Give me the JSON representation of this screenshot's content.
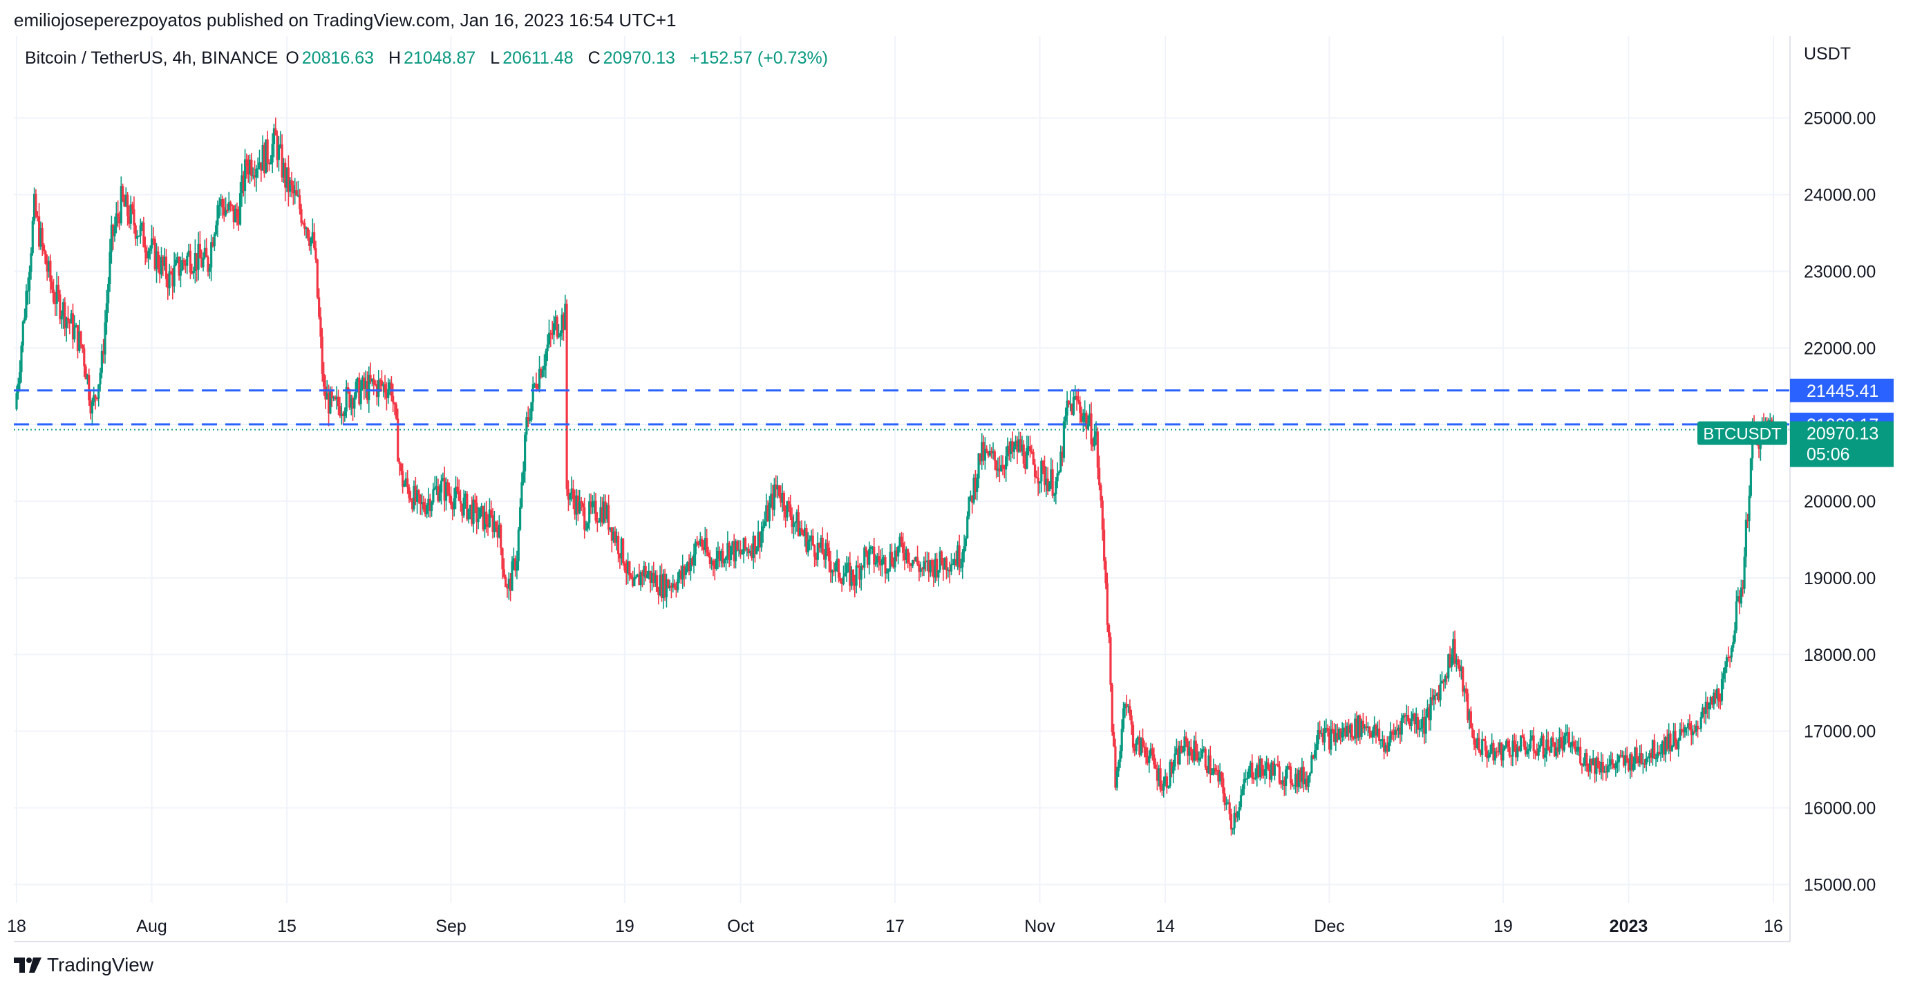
{
  "header": {
    "publisher_line": "emiliojoseperezpoyatos published on TradingView.com, Jan 16, 2023 16:54 UTC+1"
  },
  "legend": {
    "symbol": "Bitcoin / TetherUS, 4h, BINANCE",
    "open_label": "O",
    "open": "20816.63",
    "high_label": "H",
    "high": "21048.87",
    "low_label": "L",
    "low": "20611.48",
    "close_label": "C",
    "close": "20970.13",
    "change": "+152.57 (+0.73%)"
  },
  "footer": {
    "brand": "TradingView"
  },
  "colors": {
    "up": "#089981",
    "down": "#f23645",
    "level": "#2962ff",
    "grid": "#f0f3fa",
    "axis_text": "#131722"
  },
  "chart_data": {
    "type": "candlestick",
    "title": "",
    "xlabel": "",
    "ylabel": "",
    "y_unit": "USDT",
    "ylim": [
      14760,
      26070
    ],
    "grid": true,
    "y_ticks": [
      15000,
      16000,
      17000,
      18000,
      19000,
      20000,
      21000,
      22000,
      23000,
      24000,
      25000
    ],
    "y_tick_labels": [
      "15000.00",
      "16000.00",
      "17000.00",
      "18000.00",
      "19000.00",
      "20000.00",
      "21000.00",
      "22000.00",
      "23000.00",
      "24000.00",
      "25000.00"
    ],
    "x_range": [
      "2022-07-18",
      "2023-01-16"
    ],
    "x_ticks": [
      {
        "date": "2022-07-18",
        "label": "18",
        "bold": false
      },
      {
        "date": "2022-08-01",
        "label": "Aug",
        "bold": false
      },
      {
        "date": "2022-08-15",
        "label": "15",
        "bold": false
      },
      {
        "date": "2022-09-01",
        "label": "Sep",
        "bold": false
      },
      {
        "date": "2022-09-19",
        "label": "19",
        "bold": false
      },
      {
        "date": "2022-10-01",
        "label": "Oct",
        "bold": false
      },
      {
        "date": "2022-10-17",
        "label": "17",
        "bold": false
      },
      {
        "date": "2022-11-01",
        "label": "Nov",
        "bold": false
      },
      {
        "date": "2022-11-14",
        "label": "14",
        "bold": false
      },
      {
        "date": "2022-12-01",
        "label": "Dec",
        "bold": false
      },
      {
        "date": "2022-12-19",
        "label": "19",
        "bold": false
      },
      {
        "date": "2023-01-01",
        "label": "2023",
        "bold": true
      },
      {
        "date": "2023-01-16",
        "label": "16",
        "bold": false
      }
    ],
    "price_path": [
      {
        "date": "2022-07-18",
        "price": 21200
      },
      {
        "date": "2022-07-19",
        "price": 22500
      },
      {
        "date": "2022-07-20",
        "price": 23800
      },
      {
        "date": "2022-07-21",
        "price": 23200
      },
      {
        "date": "2022-07-22",
        "price": 22700
      },
      {
        "date": "2022-07-23",
        "price": 22500
      },
      {
        "date": "2022-07-25",
        "price": 22000
      },
      {
        "date": "2022-07-26",
        "price": 21200
      },
      {
        "date": "2022-07-27",
        "price": 21800
      },
      {
        "date": "2022-07-28",
        "price": 23400
      },
      {
        "date": "2022-07-29",
        "price": 23900
      },
      {
        "date": "2022-07-30",
        "price": 23700
      },
      {
        "date": "2022-08-01",
        "price": 23300
      },
      {
        "date": "2022-08-03",
        "price": 22900
      },
      {
        "date": "2022-08-05",
        "price": 23200
      },
      {
        "date": "2022-08-07",
        "price": 23100
      },
      {
        "date": "2022-08-08",
        "price": 23900
      },
      {
        "date": "2022-08-10",
        "price": 23700
      },
      {
        "date": "2022-08-11",
        "price": 24400
      },
      {
        "date": "2022-08-13",
        "price": 24500
      },
      {
        "date": "2022-08-14",
        "price": 24700
      },
      {
        "date": "2022-08-15",
        "price": 24200
      },
      {
        "date": "2022-08-17",
        "price": 23700
      },
      {
        "date": "2022-08-18",
        "price": 23300
      },
      {
        "date": "2022-08-19",
        "price": 21400
      },
      {
        "date": "2022-08-20",
        "price": 21200
      },
      {
        "date": "2022-08-22",
        "price": 21400
      },
      {
        "date": "2022-08-24",
        "price": 21500
      },
      {
        "date": "2022-08-26",
        "price": 21500
      },
      {
        "date": "2022-08-27",
        "price": 20300
      },
      {
        "date": "2022-08-29",
        "price": 19900
      },
      {
        "date": "2022-08-31",
        "price": 20200
      },
      {
        "date": "2022-09-02",
        "price": 20000
      },
      {
        "date": "2022-09-04",
        "price": 19800
      },
      {
        "date": "2022-09-06",
        "price": 19700
      },
      {
        "date": "2022-09-07",
        "price": 18800
      },
      {
        "date": "2022-09-08",
        "price": 19300
      },
      {
        "date": "2022-09-09",
        "price": 21000
      },
      {
        "date": "2022-09-10",
        "price": 21600
      },
      {
        "date": "2022-09-12",
        "price": 22300
      },
      {
        "date": "2022-09-13",
        "price": 22400
      },
      {
        "date": "2022-09-13",
        "price": 20200
      },
      {
        "date": "2022-09-15",
        "price": 19800
      },
      {
        "date": "2022-09-17",
        "price": 19900
      },
      {
        "date": "2022-09-19",
        "price": 19300
      },
      {
        "date": "2022-09-20",
        "price": 18800
      },
      {
        "date": "2022-09-21",
        "price": 19100
      },
      {
        "date": "2022-09-23",
        "price": 18900
      },
      {
        "date": "2022-09-25",
        "price": 19000
      },
      {
        "date": "2022-09-27",
        "price": 19500
      },
      {
        "date": "2022-09-28",
        "price": 19200
      },
      {
        "date": "2022-09-30",
        "price": 19400
      },
      {
        "date": "2022-10-01",
        "price": 19300
      },
      {
        "date": "2022-10-03",
        "price": 19500
      },
      {
        "date": "2022-10-05",
        "price": 20200
      },
      {
        "date": "2022-10-06",
        "price": 19900
      },
      {
        "date": "2022-10-08",
        "price": 19500
      },
      {
        "date": "2022-10-10",
        "price": 19300
      },
      {
        "date": "2022-10-11",
        "price": 19100
      },
      {
        "date": "2022-10-13",
        "price": 19000
      },
      {
        "date": "2022-10-14",
        "price": 19300
      },
      {
        "date": "2022-10-16",
        "price": 19200
      },
      {
        "date": "2022-10-18",
        "price": 19400
      },
      {
        "date": "2022-10-20",
        "price": 19100
      },
      {
        "date": "2022-10-22",
        "price": 19200
      },
      {
        "date": "2022-10-24",
        "price": 19300
      },
      {
        "date": "2022-10-25",
        "price": 20000
      },
      {
        "date": "2022-10-26",
        "price": 20600
      },
      {
        "date": "2022-10-28",
        "price": 20500
      },
      {
        "date": "2022-10-30",
        "price": 20700
      },
      {
        "date": "2022-11-01",
        "price": 20400
      },
      {
        "date": "2022-11-03",
        "price": 20200
      },
      {
        "date": "2022-11-04",
        "price": 21200
      },
      {
        "date": "2022-11-05",
        "price": 21300
      },
      {
        "date": "2022-11-07",
        "price": 20800
      },
      {
        "date": "2022-11-08",
        "price": 19000
      },
      {
        "date": "2022-11-09",
        "price": 16200
      },
      {
        "date": "2022-11-10",
        "price": 17500
      },
      {
        "date": "2022-11-11",
        "price": 16800
      },
      {
        "date": "2022-11-12",
        "price": 16800
      },
      {
        "date": "2022-11-14",
        "price": 16300
      },
      {
        "date": "2022-11-16",
        "price": 16800
      },
      {
        "date": "2022-11-18",
        "price": 16700
      },
      {
        "date": "2022-11-20",
        "price": 16300
      },
      {
        "date": "2022-11-21",
        "price": 15800
      },
      {
        "date": "2022-11-23",
        "price": 16500
      },
      {
        "date": "2022-11-25",
        "price": 16500
      },
      {
        "date": "2022-11-27",
        "price": 16400
      },
      {
        "date": "2022-11-29",
        "price": 16400
      },
      {
        "date": "2022-11-30",
        "price": 17100
      },
      {
        "date": "2022-12-01",
        "price": 16900
      },
      {
        "date": "2022-12-03",
        "price": 17000
      },
      {
        "date": "2022-12-05",
        "price": 17100
      },
      {
        "date": "2022-12-07",
        "price": 16800
      },
      {
        "date": "2022-12-09",
        "price": 17200
      },
      {
        "date": "2022-12-11",
        "price": 17100
      },
      {
        "date": "2022-12-13",
        "price": 17700
      },
      {
        "date": "2022-12-14",
        "price": 18100
      },
      {
        "date": "2022-12-15",
        "price": 17600
      },
      {
        "date": "2022-12-16",
        "price": 16900
      },
      {
        "date": "2022-12-18",
        "price": 16700
      },
      {
        "date": "2022-12-20",
        "price": 16800
      },
      {
        "date": "2022-12-22",
        "price": 16800
      },
      {
        "date": "2022-12-24",
        "price": 16800
      },
      {
        "date": "2022-12-26",
        "price": 16850
      },
      {
        "date": "2022-12-28",
        "price": 16600
      },
      {
        "date": "2022-12-30",
        "price": 16550
      },
      {
        "date": "2023-01-01",
        "price": 16600
      },
      {
        "date": "2023-01-03",
        "price": 16700
      },
      {
        "date": "2023-01-05",
        "price": 16850
      },
      {
        "date": "2023-01-07",
        "price": 16950
      },
      {
        "date": "2023-01-09",
        "price": 17200
      },
      {
        "date": "2023-01-10",
        "price": 17400
      },
      {
        "date": "2023-01-11",
        "price": 17600
      },
      {
        "date": "2023-01-12",
        "price": 18300
      },
      {
        "date": "2023-01-13",
        "price": 19000
      },
      {
        "date": "2023-01-14",
        "price": 20800
      },
      {
        "date": "2023-01-15",
        "price": 20900
      },
      {
        "date": "2023-01-16",
        "price": 20970
      }
    ],
    "horizontal_levels": [
      {
        "price": 21445.41,
        "label": "21445.41",
        "style": "dashed",
        "color": "#2962ff"
      },
      {
        "price": 21002.17,
        "label": "21002.17",
        "style": "dashed",
        "color": "#2962ff"
      }
    ],
    "last_price": {
      "price": 20970.13,
      "label": "20970.13",
      "symbol": "BTCUSDT",
      "countdown": "05:06",
      "color": "#089981"
    }
  }
}
